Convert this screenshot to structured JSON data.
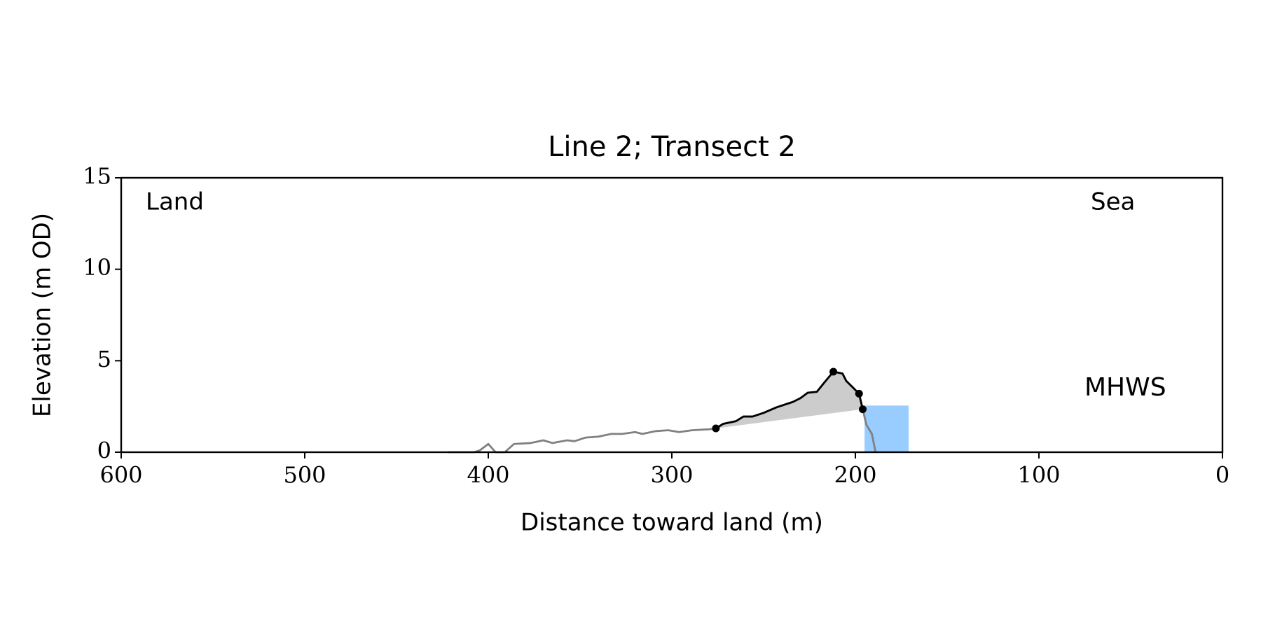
{
  "chart_data": {
    "type": "line",
    "title": "Line 2; Transect 2",
    "x_label": "Distance toward land (m)",
    "y_label": "Elevation (m OD)",
    "annotations": {
      "land": "Land",
      "sea": "Sea"
    },
    "xlim": [
      600,
      0
    ],
    "ylim": [
      0,
      15
    ],
    "xticks": [
      600,
      500,
      400,
      300,
      200,
      100,
      0
    ],
    "yticks": [
      0,
      5,
      10,
      15
    ],
    "series": [
      {
        "color": "#808080",
        "x": [
          422,
          407.6,
          404.6,
          400,
          396,
          391,
          386,
          377,
          370,
          365,
          357,
          353,
          347,
          340,
          333,
          327,
          320,
          316,
          309,
          302,
          296,
          289,
          280,
          276,
          272,
          265,
          261,
          256,
          250,
          243,
          234,
          230,
          226,
          221,
          217,
          212,
          207,
          205,
          202,
          198,
          196,
          194,
          191,
          189
        ],
        "values": [
          0,
          0,
          0.1,
          0.45,
          0,
          0,
          0.45,
          0.5,
          0.65,
          0.5,
          0.65,
          0.6,
          0.8,
          0.85,
          1.0,
          1.0,
          1.1,
          1.0,
          1.15,
          1.2,
          1.1,
          1.2,
          1.25,
          1.3,
          1.55,
          1.7,
          1.95,
          1.95,
          2.15,
          2.45,
          2.75,
          2.95,
          3.25,
          3.3,
          3.8,
          4.4,
          4.3,
          3.9,
          3.6,
          3.2,
          2.35,
          1.5,
          1.0,
          0
        ]
      },
      {
        "color": "#000000",
        "fill": "#cccccc",
        "x": [
          276,
          272,
          265,
          261,
          256,
          250,
          243,
          234,
          230,
          226,
          221,
          217,
          212,
          207,
          205,
          202,
          198,
          196
        ],
        "values": [
          1.3,
          1.55,
          1.7,
          1.95,
          1.95,
          2.15,
          2.45,
          2.75,
          2.95,
          3.25,
          3.3,
          3.8,
          4.4,
          4.3,
          3.9,
          3.6,
          3.2,
          2.35
        ]
      }
    ],
    "markers": {
      "color": "#000000",
      "x": [
        276,
        212,
        198,
        196
      ],
      "values": [
        1.3,
        4.4,
        3.2,
        2.35
      ]
    },
    "mhws": {
      "label": "MHWS",
      "value": 2.55,
      "x": [
        195,
        171
      ],
      "color": "#99ccff",
      "label_color": "#6699cc"
    }
  }
}
